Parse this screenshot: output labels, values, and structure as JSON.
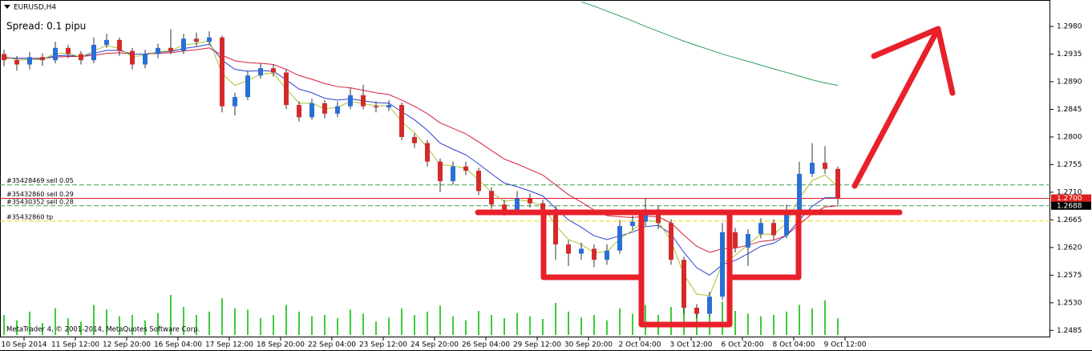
{
  "window_title": "EURUSD,H4",
  "spread": "Spread: 0.1 pipu",
  "copyright": "MetaTrader 4, © 2001-2014, MetaQuotes Software Corp.",
  "chart_data": {
    "type": "candlestick",
    "up_color": "#2a6fd6",
    "down_color": "#d42a2a",
    "wick_color": "#333333",
    "volume_color": "#3ccc3c",
    "candles": [
      [
        1.2935,
        1.2942,
        1.2915,
        1.2925
      ],
      [
        1.2925,
        1.2932,
        1.2908,
        1.2918
      ],
      [
        1.2918,
        1.2938,
        1.291,
        1.293
      ],
      [
        1.293,
        1.2936,
        1.2916,
        1.2925
      ],
      [
        1.2925,
        1.2955,
        1.292,
        1.2945
      ],
      [
        1.2945,
        1.295,
        1.2928,
        1.2935
      ],
      [
        1.2935,
        1.294,
        1.2918,
        1.2925
      ],
      [
        1.2925,
        1.2962,
        1.292,
        1.295
      ],
      [
        1.295,
        1.2968,
        1.2945,
        1.2958
      ],
      [
        1.2958,
        1.2962,
        1.2932,
        1.294
      ],
      [
        1.294,
        1.2945,
        1.291,
        1.2918
      ],
      [
        1.2918,
        1.2942,
        1.2912,
        1.2935
      ],
      [
        1.2935,
        1.2952,
        1.2928,
        1.2945
      ],
      [
        1.2945,
        1.2975,
        1.2935,
        1.294
      ],
      [
        1.294,
        1.2968,
        1.2935,
        1.296
      ],
      [
        1.296,
        1.297,
        1.2948,
        1.2955
      ],
      [
        1.2955,
        1.2972,
        1.295,
        1.2962
      ],
      [
        1.2962,
        1.2965,
        1.284,
        1.285
      ],
      [
        1.285,
        1.2872,
        1.2835,
        1.2865
      ],
      [
        1.2865,
        1.2908,
        1.286,
        1.29
      ],
      [
        1.29,
        1.292,
        1.2895,
        1.2912
      ],
      [
        1.2912,
        1.2918,
        1.2898,
        1.2905
      ],
      [
        1.2905,
        1.291,
        1.2845,
        1.2852
      ],
      [
        1.2852,
        1.2858,
        1.2825,
        1.2832
      ],
      [
        1.2832,
        1.2862,
        1.2828,
        1.2855
      ],
      [
        1.2855,
        1.286,
        1.283,
        1.2838
      ],
      [
        1.2838,
        1.2858,
        1.2832,
        1.285
      ],
      [
        1.285,
        1.288,
        1.2845,
        1.2868
      ],
      [
        1.2868,
        1.2885,
        1.2845,
        1.285
      ],
      [
        1.285,
        1.2858,
        1.284,
        1.2848
      ],
      [
        1.2848,
        1.286,
        1.2842,
        1.2852
      ],
      [
        1.2852,
        1.2856,
        1.2795,
        1.28
      ],
      [
        1.28,
        1.2806,
        1.2782,
        1.279
      ],
      [
        1.279,
        1.2795,
        1.2752,
        1.276
      ],
      [
        1.276,
        1.2765,
        1.271,
        1.2728
      ],
      [
        1.2728,
        1.276,
        1.2722,
        1.2752
      ],
      [
        1.2752,
        1.276,
        1.2738,
        1.2745
      ],
      [
        1.2745,
        1.275,
        1.2705,
        1.2712
      ],
      [
        1.2712,
        1.2718,
        1.2683,
        1.269
      ],
      [
        1.269,
        1.2698,
        1.2672,
        1.268
      ],
      [
        1.268,
        1.2712,
        1.2675,
        1.27
      ],
      [
        1.27,
        1.2708,
        1.2685,
        1.2692
      ],
      [
        1.2692,
        1.2698,
        1.2675,
        1.2682
      ],
      [
        1.2682,
        1.2688,
        1.26,
        1.2625
      ],
      [
        1.2625,
        1.2632,
        1.259,
        1.261
      ],
      [
        1.261,
        1.2628,
        1.26,
        1.2618
      ],
      [
        1.2618,
        1.2625,
        1.2588,
        1.26
      ],
      [
        1.26,
        1.2625,
        1.2592,
        1.2615
      ],
      [
        1.2615,
        1.2665,
        1.261,
        1.2655
      ],
      [
        1.2655,
        1.2672,
        1.2648,
        1.2662
      ],
      [
        1.2662,
        1.27,
        1.2655,
        1.2682
      ],
      [
        1.2682,
        1.2688,
        1.265,
        1.266
      ],
      [
        1.266,
        1.2666,
        1.2592,
        1.26
      ],
      [
        1.26,
        1.2605,
        1.2512,
        1.2522
      ],
      [
        1.2522,
        1.2528,
        1.2505,
        1.2512
      ],
      [
        1.2512,
        1.2548,
        1.2508,
        1.254
      ],
      [
        1.254,
        1.266,
        1.2535,
        1.2645
      ],
      [
        1.2645,
        1.2652,
        1.2612,
        1.262
      ],
      [
        1.262,
        1.265,
        1.259,
        1.2642
      ],
      [
        1.2642,
        1.2668,
        1.2635,
        1.266
      ],
      [
        1.266,
        1.2666,
        1.2632,
        1.264
      ],
      [
        1.264,
        1.269,
        1.2635,
        1.268
      ],
      [
        1.268,
        1.276,
        1.2675,
        1.274
      ],
      [
        1.274,
        1.279,
        1.2735,
        1.2758
      ],
      [
        1.2758,
        1.2785,
        1.274,
        1.2748
      ],
      [
        1.2748,
        1.2752,
        1.269,
        1.27
      ]
    ],
    "volumes": [
      30,
      22,
      35,
      18,
      40,
      25,
      20,
      45,
      38,
      28,
      30,
      22,
      33,
      60,
      42,
      30,
      35,
      55,
      40,
      38,
      25,
      30,
      45,
      35,
      28,
      30,
      25,
      38,
      32,
      20,
      26,
      40,
      30,
      35,
      44,
      28,
      22,
      36,
      30,
      25,
      33,
      28,
      24,
      48,
      35,
      26,
      30,
      22,
      40,
      32,
      45,
      30,
      42,
      55,
      38,
      30,
      50,
      36,
      32,
      28,
      30,
      35,
      45,
      40,
      52,
      25
    ],
    "series": [
      {
        "color": "#d81e3c",
        "values": [
          1.2928,
          1.2928,
          1.2928,
          1.2928,
          1.293,
          1.2931,
          1.2931,
          1.2933,
          1.2936,
          1.2937,
          1.2935,
          1.2935,
          1.2936,
          1.2937,
          1.294,
          1.2942,
          1.2945,
          1.2933,
          1.2924,
          1.2921,
          1.292,
          1.2918,
          1.291,
          1.29,
          1.2894,
          1.2887,
          1.2882,
          1.288,
          1.2876,
          1.2872,
          1.2869,
          1.286,
          1.285,
          1.2838,
          1.2823,
          1.2814,
          1.2805,
          1.2792,
          1.2778,
          1.2764,
          1.2756,
          1.2747,
          1.2738,
          1.2722,
          1.2706,
          1.2694,
          1.2681,
          1.2672,
          1.267,
          1.2669,
          1.2671,
          1.267,
          1.266,
          1.264,
          1.2622,
          1.2612,
          1.2618,
          1.2619,
          1.2624,
          1.263,
          1.2632,
          1.264,
          1.2658,
          1.2675,
          1.2686,
          1.2688
        ]
      },
      {
        "color": "#2b3fd0",
        "values": [
          1.293,
          1.2928,
          1.2928,
          1.2927,
          1.2932,
          1.2933,
          1.2931,
          1.2936,
          1.2941,
          1.2941,
          1.2935,
          1.2935,
          1.2938,
          1.2939,
          1.2944,
          1.2947,
          1.2951,
          1.2925,
          1.291,
          1.2907,
          1.2908,
          1.2907,
          1.2893,
          1.2878,
          1.2872,
          1.2863,
          1.286,
          1.2862,
          1.2859,
          1.2856,
          1.2855,
          1.2841,
          1.2828,
          1.2811,
          1.279,
          1.278,
          1.2771,
          1.2756,
          1.274,
          1.2725,
          1.2719,
          1.2712,
          1.2704,
          1.2684,
          1.2665,
          1.2653,
          1.2639,
          1.2633,
          1.2639,
          1.2645,
          1.2654,
          1.2656,
          1.2642,
          1.2612,
          1.2587,
          1.2575,
          1.2592,
          1.2599,
          1.261,
          1.2622,
          1.2627,
          1.264,
          1.2665,
          1.2687,
          1.2701,
          1.2701
        ]
      },
      {
        "color": "#a8c030",
        "values": [
          1.2932,
          1.2925,
          1.2926,
          1.2926,
          1.2936,
          1.2936,
          1.293,
          1.294,
          1.2949,
          1.2944,
          1.2931,
          1.2933,
          1.2939,
          1.294,
          1.295,
          1.2952,
          1.2957,
          1.2903,
          1.2884,
          1.2892,
          1.2902,
          1.2904,
          1.2878,
          1.2855,
          1.2855,
          1.2846,
          1.2848,
          1.2858,
          1.2854,
          1.2851,
          1.2851,
          1.2825,
          1.2807,
          1.2783,
          1.2755,
          1.2753,
          1.2749,
          1.273,
          1.271,
          1.2695,
          1.2698,
          1.2695,
          1.2688,
          1.2656,
          1.2633,
          1.2625,
          1.2612,
          1.2613,
          1.2634,
          1.2648,
          1.2665,
          1.2662,
          1.2631,
          1.2576,
          1.2544,
          1.2542,
          1.2594,
          1.2607,
          1.2625,
          1.2642,
          1.2641,
          1.266,
          1.27,
          1.2729,
          1.2738,
          1.2719
        ]
      },
      {
        "color": "#2aa05a",
        "values": [
          null,
          null,
          null,
          null,
          null,
          null,
          null,
          null,
          null,
          null,
          null,
          null,
          null,
          null,
          null,
          null,
          null,
          null,
          null,
          null,
          null,
          null,
          null,
          null,
          null,
          null,
          null,
          null,
          null,
          null,
          null,
          null,
          null,
          null,
          null,
          null,
          null,
          null,
          null,
          null,
          null,
          null,
          null,
          null,
          null,
          1.302,
          1.3013,
          1.3005,
          1.2997,
          1.2989,
          1.298,
          1.2972,
          1.2964,
          1.2956,
          1.2949,
          1.2942,
          1.2935,
          1.2929,
          1.2923,
          1.2917,
          1.2911,
          1.2905,
          1.2899,
          1.2893,
          1.2888,
          1.2884
        ]
      }
    ],
    "x_labels": [
      "10 Sep 2014",
      "11 Sep 12:00",
      "12 Sep 20:00",
      "16 Sep 04:00",
      "17 Sep 12:00",
      "18 Sep 20:00",
      "22 Sep 04:00",
      "23 Sep 12:00",
      "24 Sep 20:00",
      "26 Sep 04:00",
      "29 Sep 12:00",
      "30 Sep 20:00",
      "2 Oct 04:00",
      "3 Oct 12:00",
      "6 Oct 20:00",
      "8 Oct 04:00",
      "9 Oct 12:00"
    ],
    "ylim": [
      1.2475,
      1.3023
    ],
    "yticks": [
      {
        "value": 1.298,
        "label": "1.2980"
      },
      {
        "value": 1.2935,
        "label": "1.2935"
      },
      {
        "value": 1.289,
        "label": "1.2890"
      },
      {
        "value": 1.2845,
        "label": "1.2845"
      },
      {
        "value": 1.28,
        "label": "1.2800"
      },
      {
        "value": 1.2755,
        "label": "1.2755"
      },
      {
        "value": 1.271,
        "label": "1.2710"
      },
      {
        "value": 1.2665,
        "label": "1.2665"
      },
      {
        "value": 1.262,
        "label": "1.2620"
      },
      {
        "value": 1.2575,
        "label": "1.2575"
      },
      {
        "value": 1.253,
        "label": "1.2530"
      },
      {
        "value": 1.2485,
        "label": "1.2485"
      }
    ],
    "orders": [
      {
        "label": "#35428469 sell 0.05",
        "price": 1.2722,
        "color": "#3aa050"
      },
      {
        "label": "#35432860 sell 0.29",
        "price": 1.27,
        "color": "#e02020"
      },
      {
        "label": "#35430352 sell 0.28",
        "price": 1.2688,
        "color": "#3aa050"
      },
      {
        "label": "#35432860 tp",
        "price": 1.2663,
        "color": "#e8d800"
      }
    ],
    "price_tags": [
      {
        "value": 1.27,
        "label": "1.2700",
        "color": "#e02020"
      },
      {
        "value": 1.2688,
        "label": "1.2688",
        "color": "#000000"
      }
    ]
  }
}
